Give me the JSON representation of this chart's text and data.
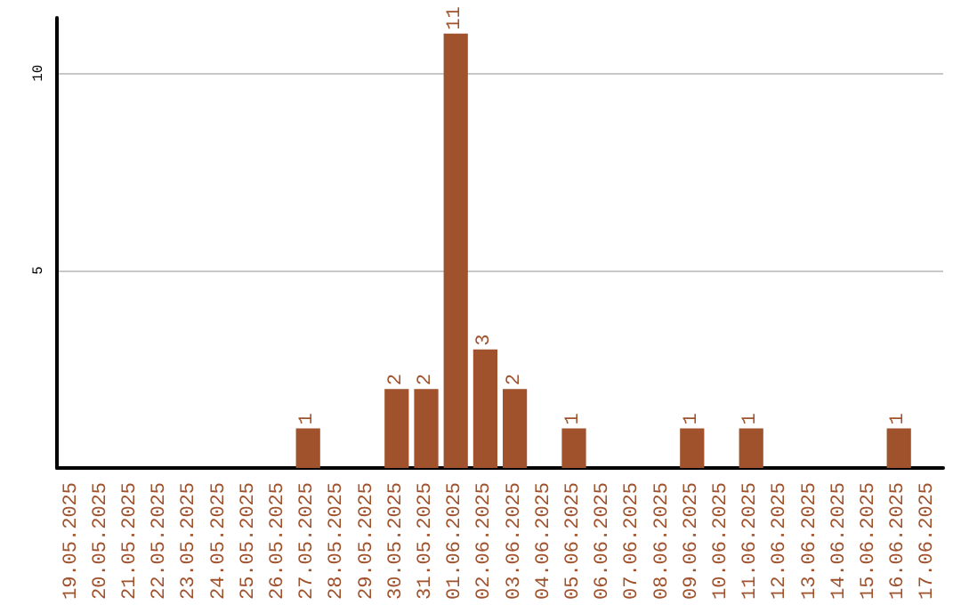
{
  "chart_data": {
    "type": "bar",
    "categories": [
      "19.05.2025",
      "20.05.2025",
      "21.05.2025",
      "22.05.2025",
      "23.05.2025",
      "24.05.2025",
      "25.05.2025",
      "26.05.2025",
      "27.05.2025",
      "28.05.2025",
      "29.05.2025",
      "30.05.2025",
      "31.05.2025",
      "01.06.2025",
      "02.06.2025",
      "03.06.2025",
      "04.06.2025",
      "05.06.2025",
      "06.06.2025",
      "07.06.2025",
      "08.06.2025",
      "09.06.2025",
      "10.06.2025",
      "11.06.2025",
      "12.06.2025",
      "13.06.2025",
      "14.06.2025",
      "15.06.2025",
      "16.06.2025",
      "17.06.2025"
    ],
    "values": [
      0,
      0,
      0,
      0,
      0,
      0,
      0,
      0,
      1,
      0,
      0,
      2,
      2,
      11,
      3,
      2,
      0,
      1,
      0,
      0,
      0,
      1,
      0,
      1,
      0,
      0,
      0,
      0,
      1,
      0
    ],
    "value_labels": [
      null,
      null,
      null,
      null,
      null,
      null,
      null,
      null,
      "1",
      null,
      null,
      "2",
      "2",
      "11",
      "3",
      "2",
      null,
      "1",
      null,
      null,
      null,
      "1",
      null,
      "1",
      null,
      null,
      null,
      null,
      "1",
      null
    ],
    "color": "#a0522d",
    "ylim": [
      0,
      11.4
    ],
    "yticks": [
      5,
      10
    ],
    "grid": "y"
  }
}
